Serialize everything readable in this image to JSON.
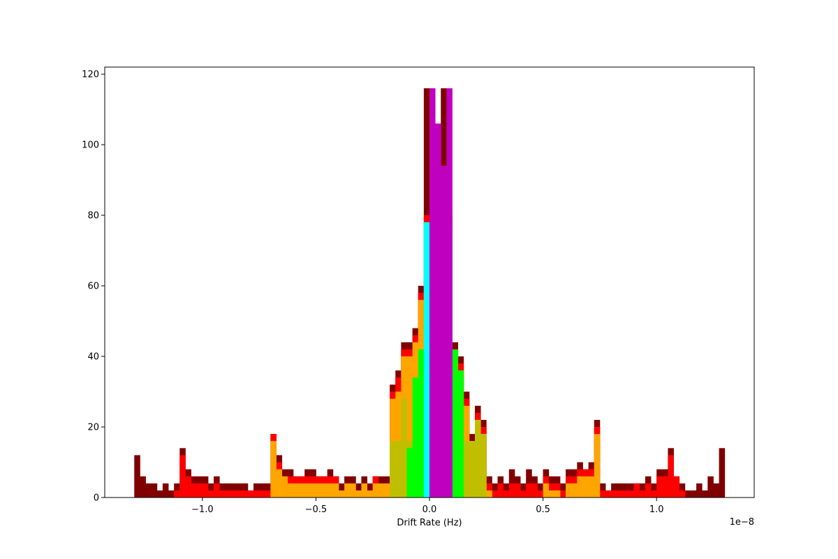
{
  "chart_data": {
    "type": "bar",
    "stacked": true,
    "xlabel": "Drift Rate (Hz)",
    "ylabel": "",
    "title": "",
    "x_offset_text": "1e−8",
    "x_scale": 1e-08,
    "xlim": [
      -1.43,
      1.43
    ],
    "ylim": [
      0,
      122
    ],
    "xticks": [
      -1.0,
      -0.5,
      0.0,
      0.5,
      1.0
    ],
    "xtick_labels": [
      "−1.0",
      "−0.5",
      "0.0",
      "0.5",
      "1.0"
    ],
    "yticks": [
      0,
      20,
      40,
      60,
      80,
      100,
      120
    ],
    "ytick_labels": [
      "0",
      "20",
      "40",
      "60",
      "80",
      "100",
      "120"
    ],
    "grid": false,
    "legend": "none",
    "bin_edges": [
      -1.3,
      1.3
    ],
    "bin_count": 104,
    "bin_width": 0.025,
    "series": [
      {
        "color": "#b0b0b0",
        "bins": [
          [
            -0.2,
            0.2
          ]
        ],
        "values": []
      }
    ],
    "layers": [
      {
        "color": "#800000",
        "values": [
          12,
          6,
          4,
          4,
          2,
          4,
          2,
          4,
          14,
          8,
          6,
          6,
          6,
          4,
          6,
          4,
          4,
          4,
          4,
          4,
          2,
          4,
          4,
          4,
          18,
          12,
          8,
          8,
          6,
          6,
          8,
          8,
          6,
          6,
          8,
          6,
          4,
          6,
          6,
          4,
          6,
          4,
          6,
          6,
          6,
          32,
          36,
          44,
          44,
          48,
          60,
          116,
          106,
          94,
          116,
          80,
          44,
          40,
          30,
          18,
          26,
          22,
          6,
          4,
          6,
          4,
          8,
          6,
          4,
          8,
          6,
          4,
          8,
          6,
          6,
          4,
          8,
          8,
          10,
          8,
          10,
          22,
          4,
          2,
          4,
          4,
          4,
          4,
          4,
          4,
          6,
          4,
          8,
          8,
          14,
          6,
          4,
          2,
          2,
          4,
          2,
          6,
          4,
          14
        ]
      },
      {
        "color": "#ff0000",
        "values": [
          0,
          0,
          0,
          0,
          0,
          0,
          0,
          2,
          12,
          6,
          4,
          4,
          4,
          2,
          4,
          2,
          2,
          2,
          2,
          2,
          2,
          2,
          2,
          2,
          18,
          10,
          6,
          6,
          6,
          6,
          6,
          6,
          6,
          6,
          6,
          6,
          2,
          4,
          4,
          2,
          4,
          2,
          6,
          4,
          4,
          30,
          34,
          42,
          42,
          46,
          58,
          80,
          60,
          80,
          80,
          78,
          42,
          38,
          28,
          16,
          24,
          20,
          4,
          2,
          4,
          2,
          4,
          4,
          2,
          4,
          4,
          2,
          6,
          4,
          4,
          2,
          6,
          6,
          8,
          8,
          8,
          20,
          2,
          2,
          2,
          2,
          2,
          2,
          4,
          2,
          4,
          2,
          6,
          6,
          12,
          6,
          2,
          0,
          0,
          0,
          0,
          0,
          0,
          0
        ]
      },
      {
        "color": "#ffa500",
        "values": [
          0,
          0,
          0,
          0,
          0,
          0,
          0,
          0,
          0,
          0,
          0,
          0,
          0,
          0,
          0,
          0,
          0,
          0,
          0,
          0,
          0,
          0,
          0,
          0,
          16,
          8,
          6,
          4,
          4,
          4,
          4,
          4,
          4,
          4,
          4,
          4,
          2,
          4,
          4,
          2,
          4,
          2,
          4,
          4,
          4,
          28,
          30,
          40,
          40,
          44,
          56,
          78,
          56,
          78,
          78,
          76,
          40,
          36,
          26,
          16,
          22,
          18,
          2,
          0,
          0,
          0,
          0,
          0,
          0,
          0,
          0,
          0,
          4,
          2,
          2,
          0,
          4,
          4,
          6,
          6,
          6,
          18,
          0,
          0,
          0,
          0,
          0,
          0,
          0,
          0,
          0,
          0,
          0,
          0,
          0,
          0,
          0,
          0,
          0,
          0,
          0,
          0,
          0,
          0
        ]
      },
      {
        "color": "#bfbf00",
        "values": [
          0,
          0,
          0,
          0,
          0,
          0,
          0,
          0,
          0,
          0,
          0,
          0,
          0,
          0,
          0,
          0,
          0,
          0,
          0,
          0,
          0,
          0,
          0,
          0,
          0,
          0,
          0,
          0,
          0,
          0,
          0,
          0,
          0,
          0,
          0,
          0,
          0,
          0,
          0,
          0,
          0,
          0,
          0,
          0,
          0,
          16,
          16,
          28,
          16,
          12,
          12,
          12,
          12,
          12,
          12,
          12,
          12,
          12,
          16,
          16,
          22,
          18,
          0,
          0,
          0,
          0,
          0,
          0,
          0,
          0,
          0,
          0,
          0,
          0,
          0,
          0,
          0,
          0,
          0,
          0,
          0,
          0,
          0,
          0,
          0,
          0,
          0,
          0,
          0,
          0,
          0,
          0,
          0,
          0,
          0,
          0,
          0,
          0,
          0,
          0,
          0,
          0,
          0,
          0
        ]
      },
      {
        "color": "#00ff00",
        "values": [
          0,
          0,
          0,
          0,
          0,
          0,
          0,
          0,
          0,
          0,
          0,
          0,
          0,
          0,
          0,
          0,
          0,
          0,
          0,
          0,
          0,
          0,
          0,
          0,
          0,
          0,
          0,
          0,
          0,
          0,
          0,
          0,
          0,
          0,
          0,
          0,
          0,
          0,
          0,
          0,
          0,
          0,
          0,
          0,
          0,
          0,
          0,
          0,
          14,
          34,
          42,
          78,
          56,
          48,
          52,
          76,
          42,
          36,
          0,
          0,
          0,
          0,
          0,
          0,
          0,
          0,
          0,
          0,
          0,
          0,
          0,
          0,
          0,
          0,
          0,
          0,
          0,
          0,
          0,
          0,
          0,
          0,
          0,
          0,
          0,
          0,
          0,
          0,
          0,
          0,
          0,
          0,
          0,
          0,
          0,
          0,
          0,
          0,
          0,
          0,
          0,
          0,
          0,
          0
        ]
      },
      {
        "color": "#00ffff",
        "values": [
          0,
          0,
          0,
          0,
          0,
          0,
          0,
          0,
          0,
          0,
          0,
          0,
          0,
          0,
          0,
          0,
          0,
          0,
          0,
          0,
          0,
          0,
          0,
          0,
          0,
          0,
          0,
          0,
          0,
          0,
          0,
          0,
          0,
          0,
          0,
          0,
          0,
          0,
          0,
          0,
          0,
          0,
          0,
          0,
          0,
          0,
          0,
          0,
          0,
          0,
          0,
          78,
          56,
          48,
          56,
          76,
          0,
          0,
          0,
          0,
          0,
          0,
          0,
          0,
          0,
          0,
          0,
          0,
          0,
          0,
          0,
          0,
          0,
          0,
          0,
          0,
          0,
          0,
          0,
          0,
          0,
          0,
          0,
          0,
          0,
          0,
          0,
          0,
          0,
          0,
          0,
          0,
          0,
          0,
          0,
          0,
          0,
          0,
          0,
          0,
          0,
          0,
          0,
          0
        ]
      },
      {
        "color": "#bf00bf",
        "values": [
          0,
          0,
          0,
          0,
          0,
          0,
          0,
          0,
          0,
          0,
          0,
          0,
          0,
          0,
          0,
          0,
          0,
          0,
          0,
          0,
          0,
          0,
          0,
          0,
          0,
          0,
          0,
          0,
          0,
          0,
          0,
          0,
          0,
          0,
          0,
          0,
          0,
          0,
          0,
          0,
          0,
          0,
          0,
          0,
          0,
          0,
          0,
          0,
          0,
          0,
          0,
          0,
          116,
          106,
          94,
          116,
          0,
          0,
          0,
          0,
          0,
          0,
          0,
          0,
          0,
          0,
          0,
          0,
          0,
          0,
          0,
          0,
          0,
          0,
          0,
          0,
          0,
          0,
          0,
          0,
          0,
          0,
          0,
          0,
          0,
          0,
          0,
          0,
          0,
          0,
          0,
          0,
          0,
          0,
          0,
          0,
          0,
          0,
          0,
          0,
          0,
          0,
          0,
          0
        ]
      }
    ]
  }
}
